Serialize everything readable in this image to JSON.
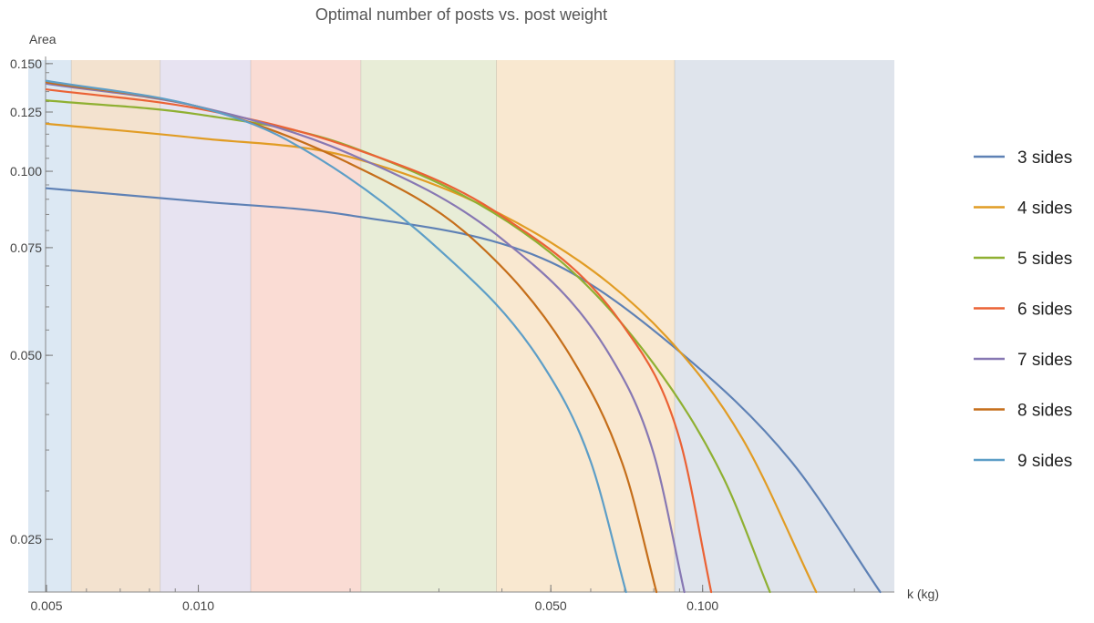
{
  "chart_data": {
    "type": "line",
    "title": "Optimal number of posts vs. post weight",
    "xlabel": "k (kg)",
    "ylabel": "Area",
    "x_scale": "log",
    "y_scale": "log",
    "xlim": [
      0.0046,
      0.24
    ],
    "ylim": [
      0.0205,
      0.152
    ],
    "x_ticks": [
      {
        "value": 0.005,
        "label": "0.005"
      },
      {
        "value": 0.01,
        "label": "0.010"
      },
      {
        "value": 0.05,
        "label": "0.050"
      },
      {
        "value": 0.1,
        "label": "0.100"
      }
    ],
    "y_ticks": [
      {
        "value": 0.025,
        "label": "0.025"
      },
      {
        "value": 0.05,
        "label": "0.050"
      },
      {
        "value": 0.075,
        "label": "0.075"
      },
      {
        "value": 0.1,
        "label": "0.100"
      },
      {
        "value": 0.125,
        "label": "0.125"
      },
      {
        "value": 0.15,
        "label": "0.150"
      }
    ],
    "bands": [
      {
        "from": 0.0046,
        "to": 0.0056,
        "color": "#dce8f3"
      },
      {
        "from": 0.0056,
        "to": 0.0084,
        "color": "#f3e2cf"
      },
      {
        "from": 0.0084,
        "to": 0.0127,
        "color": "#e7e3f1"
      },
      {
        "from": 0.0127,
        "to": 0.021,
        "color": "#fadcd4"
      },
      {
        "from": 0.021,
        "to": 0.039,
        "color": "#e8edd7"
      },
      {
        "from": 0.039,
        "to": 0.088,
        "color": "#f9e8d0"
      },
      {
        "from": 0.088,
        "to": 0.24,
        "color": "#dfe4ec"
      }
    ],
    "legend_position": "right",
    "series": [
      {
        "name": "3 sides",
        "color": "#5e81b5",
        "x": [
          0.005,
          0.01,
          0.02,
          0.05,
          0.09,
          0.15,
          0.225
        ],
        "y": [
          0.0938,
          0.0893,
          0.0847,
          0.071,
          0.0507,
          0.0335,
          0.0205
        ]
      },
      {
        "name": "4 sides",
        "color": "#e19c24",
        "x": [
          0.005,
          0.01,
          0.02,
          0.05,
          0.085,
          0.12,
          0.168
        ],
        "y": [
          0.1196,
          0.1133,
          0.1055,
          0.0765,
          0.0535,
          0.0365,
          0.0205
        ]
      },
      {
        "name": "5 sides",
        "color": "#8fb032",
        "x": [
          0.005,
          0.01,
          0.02,
          0.05,
          0.08,
          0.11,
          0.136
        ],
        "y": [
          0.1306,
          0.1239,
          0.1098,
          0.0735,
          0.0484,
          0.0315,
          0.0205
        ]
      },
      {
        "name": "6 sides",
        "color": "#eb6235",
        "x": [
          0.005,
          0.01,
          0.02,
          0.04,
          0.07,
          0.09,
          0.104
        ],
        "y": [
          0.1361,
          0.1266,
          0.1095,
          0.0845,
          0.0555,
          0.0365,
          0.0205
        ]
      },
      {
        "name": "7 sides",
        "color": "#8778b3",
        "x": [
          0.005,
          0.01,
          0.02,
          0.04,
          0.065,
          0.08,
          0.092
        ],
        "y": [
          0.1391,
          0.1276,
          0.1067,
          0.0775,
          0.0505,
          0.0345,
          0.0205
        ]
      },
      {
        "name": "8 sides",
        "color": "#c56e1a",
        "x": [
          0.005,
          0.01,
          0.02,
          0.035,
          0.055,
          0.07,
          0.081
        ],
        "y": [
          0.1398,
          0.1275,
          0.1029,
          0.0775,
          0.0495,
          0.0325,
          0.0205
        ]
      },
      {
        "name": "9 sides",
        "color": "#5d9ec7",
        "x": [
          0.005,
          0.01,
          0.015,
          0.03,
          0.048,
          0.06,
          0.0705
        ],
        "y": [
          0.1406,
          0.1275,
          0.1125,
          0.0745,
          0.0485,
          0.0335,
          0.0205
        ]
      }
    ]
  }
}
